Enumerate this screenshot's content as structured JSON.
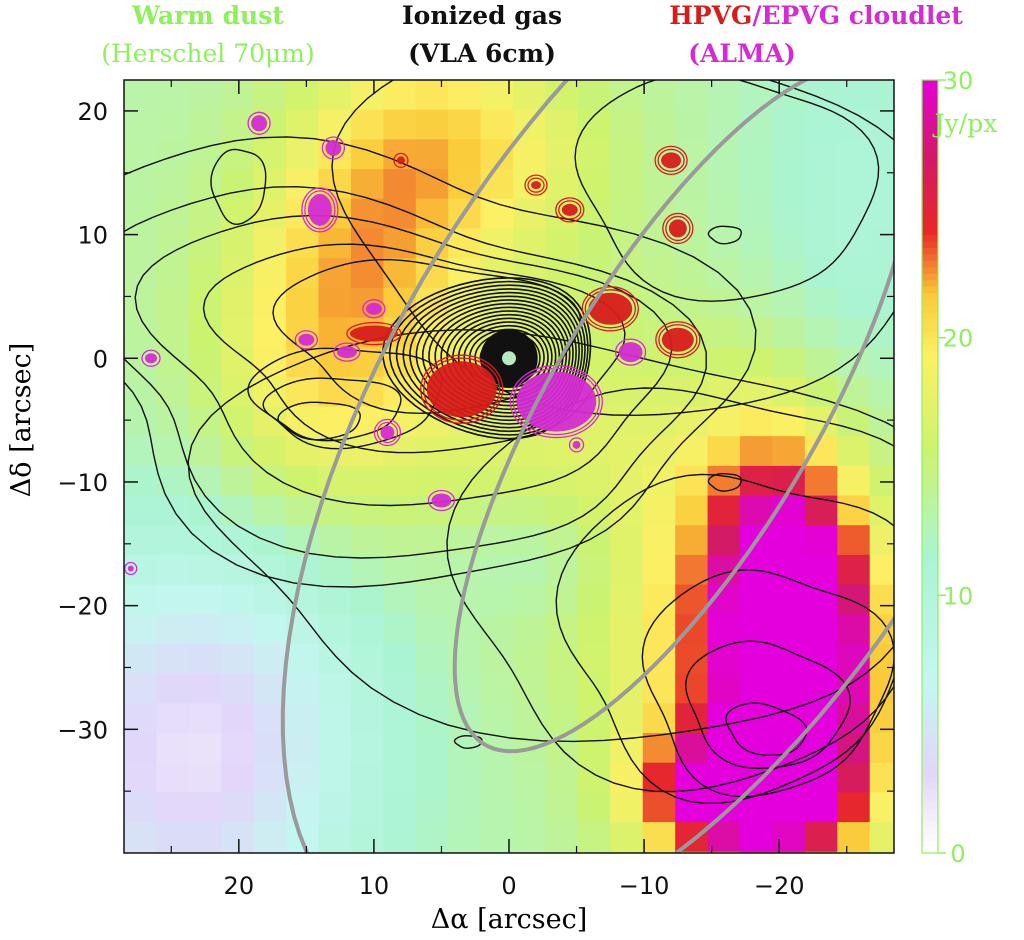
{
  "chart_data": {
    "type": "heatmap",
    "headers": [
      {
        "line1": "Warm dust",
        "line2": "(Herschel 70μm)",
        "color": "#8ef05a"
      },
      {
        "line1": "Ionized gas",
        "line2": "(VLA 6cm)",
        "color": "#111111"
      },
      {
        "line1_a": "HPVG",
        "line1_sep": "/",
        "line1_b": "EPVG cloudlet",
        "line2": "(ALMA)",
        "color_a": "#d81b1b",
        "color_b": "#d42bd4"
      }
    ],
    "xlabel": "Δα [arcsec]",
    "ylabel": "Δδ [arcsec]",
    "xlim": [
      28.5,
      -28.5
    ],
    "ylim": [
      -40,
      22.5
    ],
    "xticks": [
      20,
      10,
      0,
      -10,
      -20
    ],
    "xtick_labels": [
      "20",
      "10",
      "0",
      "−10",
      "−20"
    ],
    "yticks": [
      20,
      10,
      0,
      -10,
      -20,
      -30
    ],
    "ytick_labels": [
      "20",
      "10",
      "0",
      "−10",
      "−20",
      "−30"
    ],
    "colorbar": {
      "unit": "Jy/px",
      "range": [
        0,
        30
      ],
      "ticks": [
        0,
        10,
        20,
        30
      ],
      "tick_labels": [
        "0",
        "10",
        "20",
        "30"
      ],
      "label_color": "#8ef05a"
    },
    "heatmap_peaks": [
      {
        "x": -21,
        "y": -22,
        "value": 30
      },
      {
        "x": -17,
        "y": -36,
        "value": 28
      },
      {
        "x": 13,
        "y": 8,
        "value": 21
      },
      {
        "x": 1,
        "y": 19,
        "value": 19
      }
    ],
    "radio_peak": {
      "x": 0,
      "y": 0
    },
    "grey_ellipses": [
      {
        "cx": -13,
        "cy": -4,
        "a": 31,
        "b": 10,
        "angle_deg": -62
      },
      {
        "cx": -13,
        "cy": -4,
        "a": 48,
        "b": 22,
        "angle_deg": -62
      }
    ],
    "grid": false
  }
}
